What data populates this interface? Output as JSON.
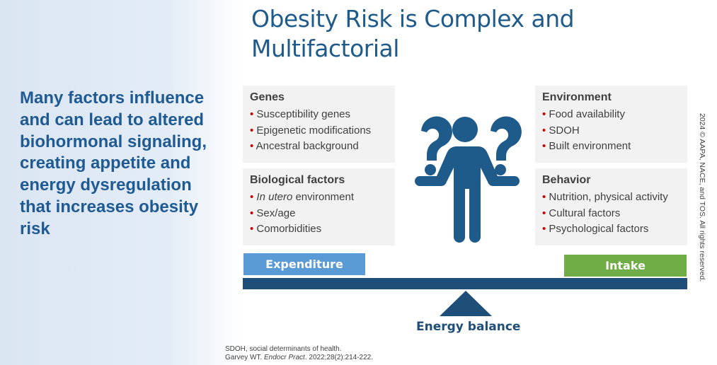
{
  "title": "Obesity Risk is Complex and Multifactorial",
  "lead": "Many factors influence and can lead to altered biohormonal signaling, creating appetite and energy dysregulation that increases obesity risk",
  "boxes": {
    "genes": {
      "heading": "Genes",
      "items": [
        "Susceptibility genes",
        "Epigenetic modifications",
        "Ancestral background"
      ]
    },
    "biological": {
      "heading": "Biological factors",
      "items": [
        {
          "italic": "In utero",
          "rest": " environment"
        },
        "Sex/age",
        "Comorbidities"
      ]
    },
    "environment": {
      "heading": "Environment",
      "items": [
        "Food availability",
        "SDOH",
        "Built environment"
      ]
    },
    "behavior": {
      "heading": "Behavior",
      "items": [
        "Nutrition, physical activity",
        "Cultural factors",
        "Psychological factors"
      ]
    }
  },
  "expenditure": "Expenditure",
  "intake": "Intake",
  "energy_balance": "Energy balance",
  "footnote": {
    "line1": "SDOH, social determinants of health.",
    "author": "Garvey WT. ",
    "journal": "Endocr Pract",
    "cite": ". 2022;28(2):214-222."
  },
  "copyright": "2024 © AAPA, NACE, and TOS. All rights reserved.",
  "colors": {
    "expenditure": "#5b9bd5",
    "intake": "#70ad47",
    "beam": "#1f4e79"
  }
}
